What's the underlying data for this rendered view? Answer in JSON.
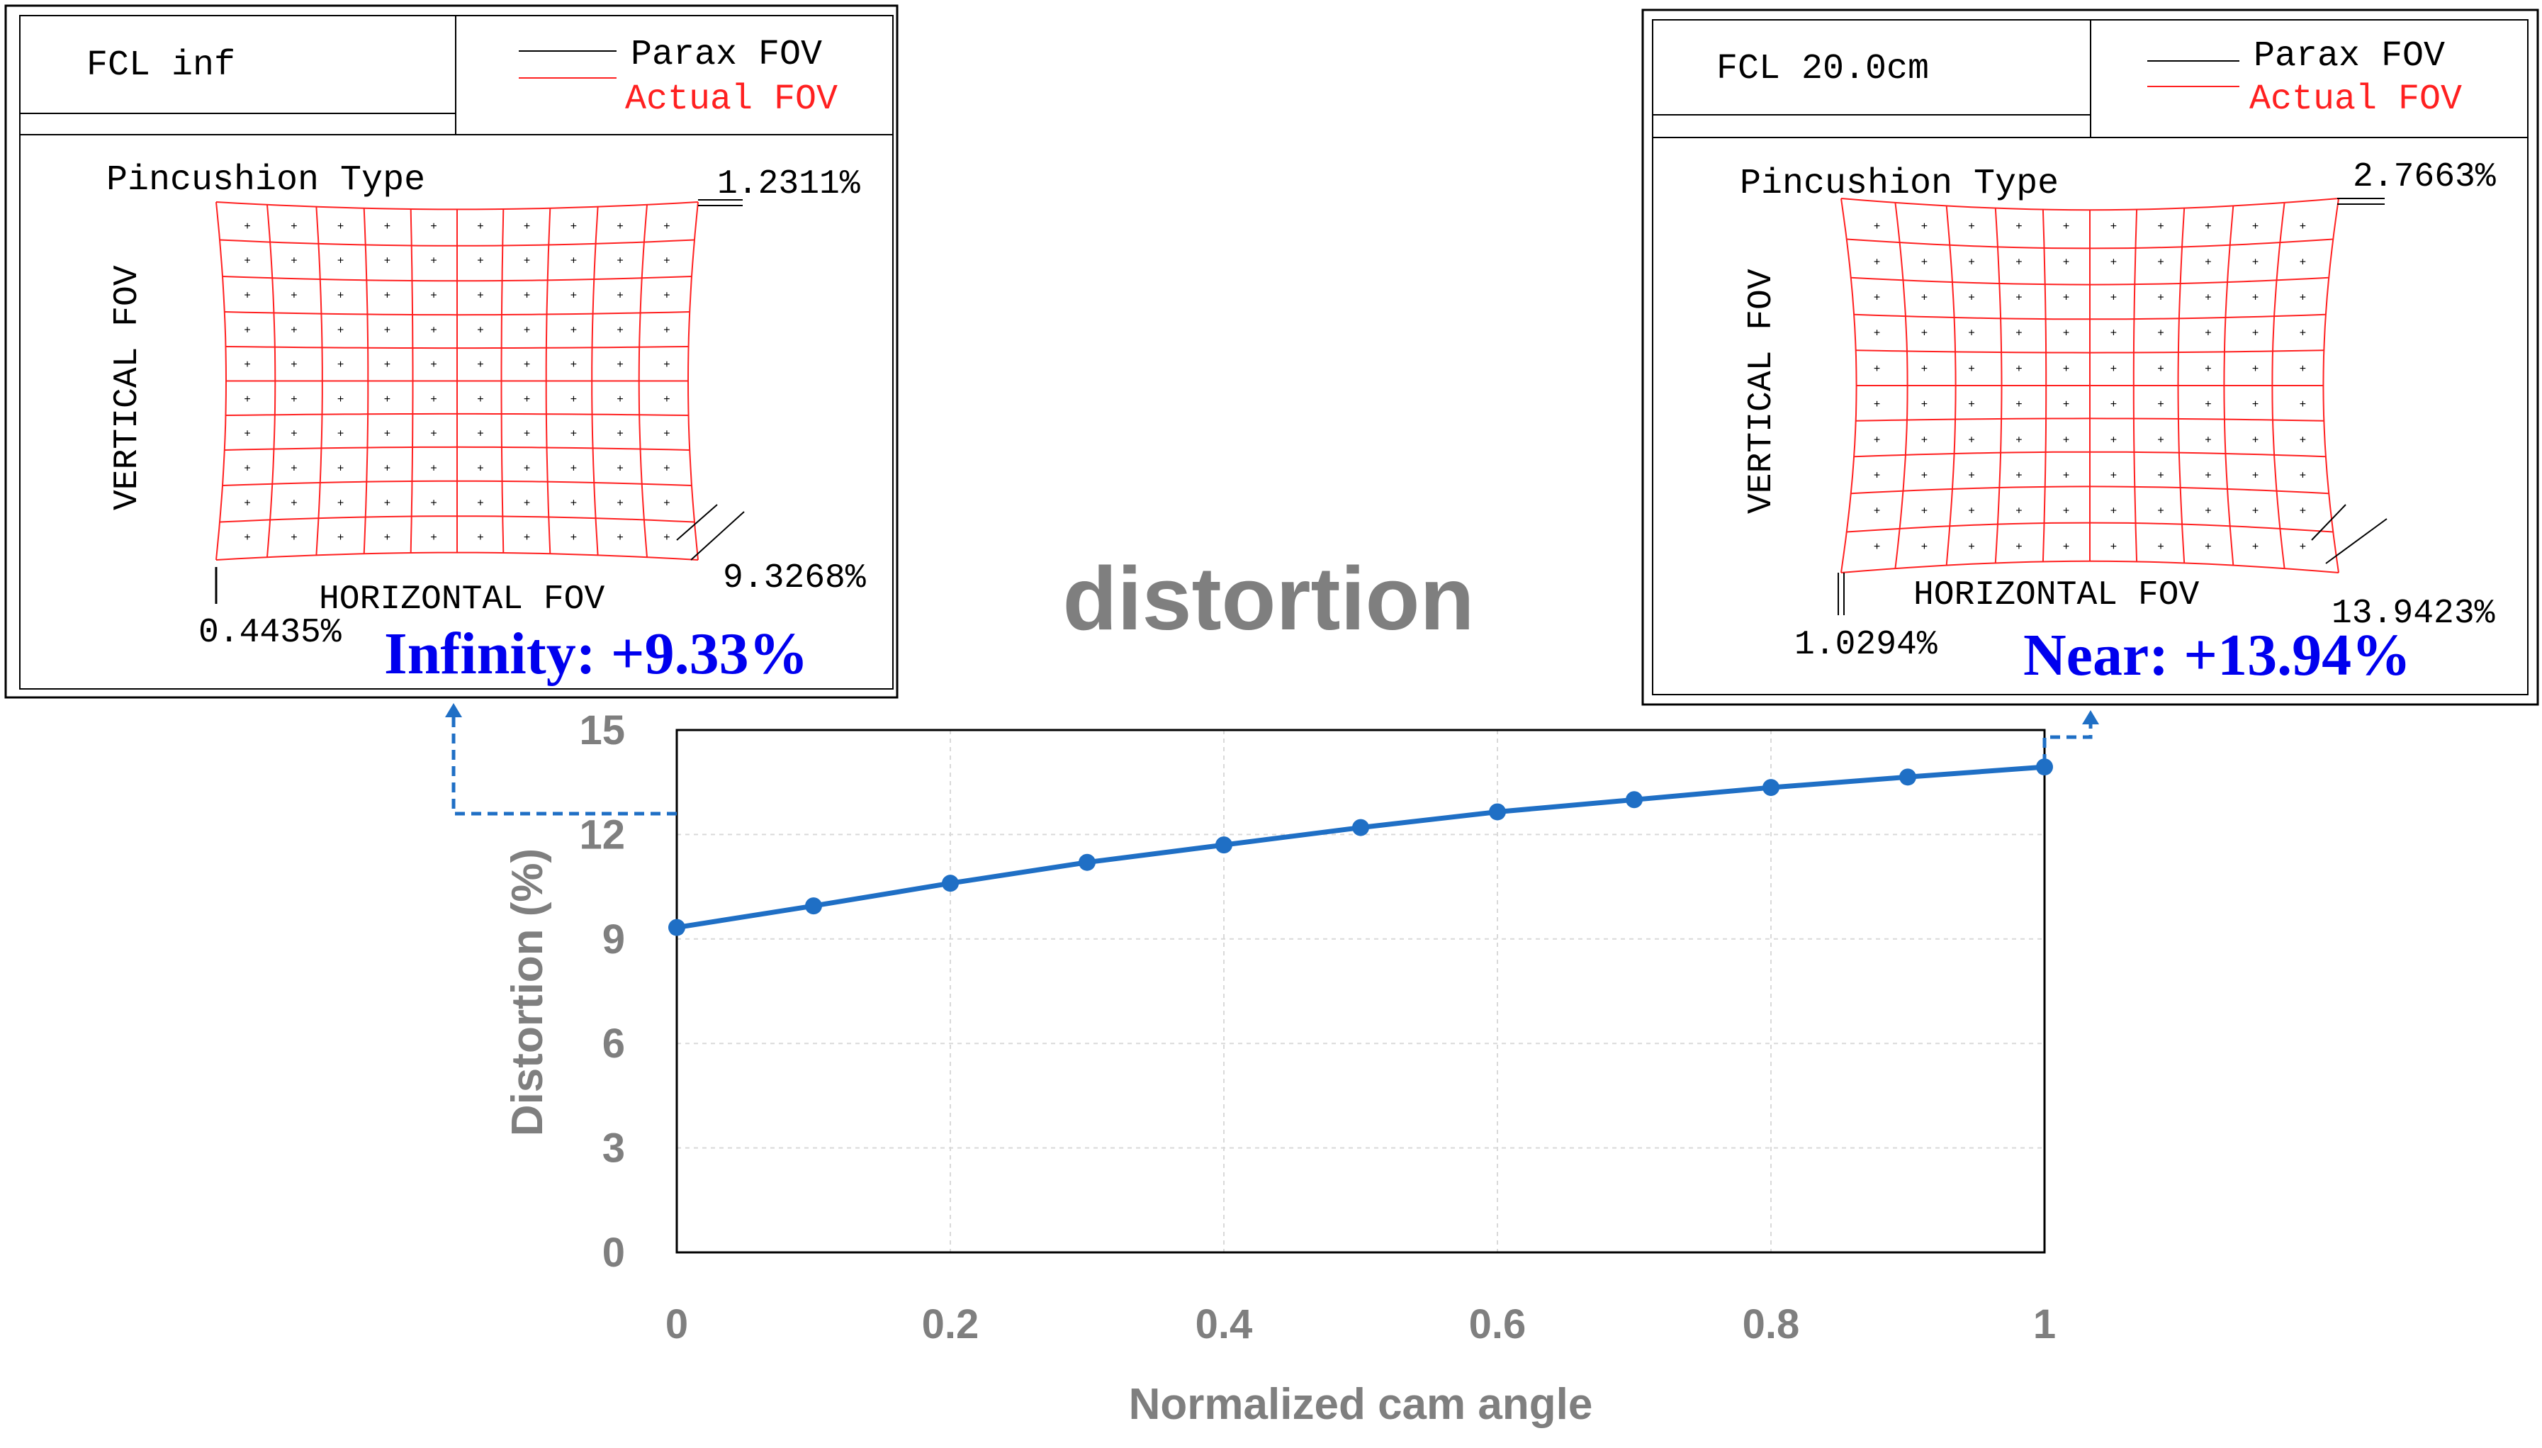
{
  "colors": {
    "line": "#1F6FC5",
    "grid_red": "#FF2020",
    "blue_label": "#0000EE",
    "gray_text": "#7F7F7F",
    "gridline": "#D9D9D9"
  },
  "center_title": "distortion",
  "panels": [
    {
      "id": "infinity",
      "fcl_label": "FCL inf",
      "legend": {
        "parax": "Parax FOV",
        "actual": "Actual FOV"
      },
      "type_label": "Pincushion Type",
      "vertical_label": "VERTICAL FOV",
      "horizontal_label": "HORIZONTAL FOV",
      "top_right_value": "1.2311%",
      "bottom_right_value": "9.3268%",
      "bottom_left_value": "0.4435%",
      "result_label": "Infinity: +9.33%",
      "pincushion": 0.09
    },
    {
      "id": "near",
      "fcl_label": "FCL 20.0cm",
      "legend": {
        "parax": "Parax FOV",
        "actual": "Actual FOV"
      },
      "type_label": "Pincushion Type",
      "vertical_label": "VERTICAL FOV",
      "horizontal_label": "HORIZONTAL FOV",
      "top_right_value": "2.7663%",
      "bottom_right_value": "13.9423%",
      "bottom_left_value": "1.0294%",
      "result_label": "Near: +13.94%",
      "pincushion": 0.14
    }
  ],
  "chart_data": {
    "type": "line",
    "title": "distortion",
    "xlabel": "Normalized cam angle",
    "ylabel": "Distortion (%)",
    "x": [
      0,
      0.1,
      0.2,
      0.3,
      0.4,
      0.5,
      0.6,
      0.7,
      0.8,
      0.9,
      1.0
    ],
    "series": [
      {
        "name": "Distortion",
        "values": [
          9.33,
          9.95,
          10.6,
          11.2,
          11.7,
          12.2,
          12.65,
          13.0,
          13.35,
          13.65,
          13.94
        ]
      }
    ],
    "xlim": [
      0,
      1
    ],
    "ylim": [
      0,
      15
    ],
    "xticks": [
      0,
      0.2,
      0.4,
      0.6,
      0.8,
      1
    ],
    "xtick_labels": [
      "0",
      "0.2",
      "0.4",
      "0.6",
      "0.8",
      "1"
    ],
    "yticks": [
      0,
      3,
      6,
      9,
      12,
      15
    ],
    "ytick_labels": [
      "0",
      "3",
      "6",
      "9",
      "12",
      "15"
    ],
    "grid": true
  }
}
